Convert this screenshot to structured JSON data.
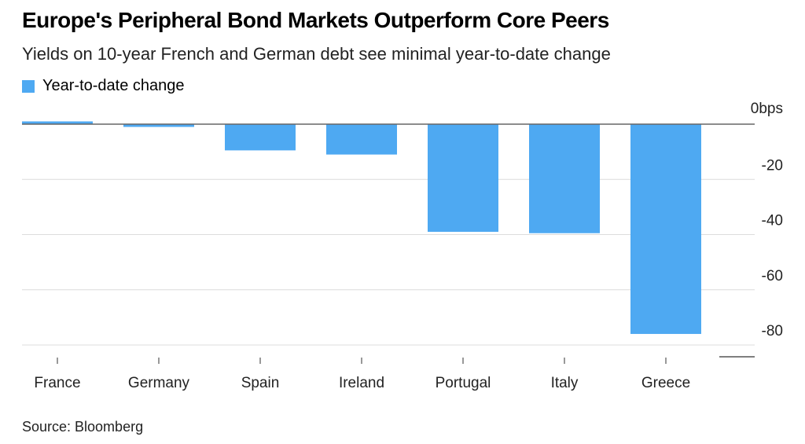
{
  "title": "Europe's Peripheral Bond Markets Outperform Core Peers",
  "subtitle": "Yields on 10-year French and German debt see minimal year-to-date change",
  "legend": {
    "label": "Year-to-date change",
    "color": "#4ea9f2"
  },
  "source": "Source: Bloomberg",
  "chart_data": {
    "type": "bar",
    "categories": [
      "France",
      "Germany",
      "Spain",
      "Ireland",
      "Portugal",
      "Italy",
      "Greece"
    ],
    "series": [
      {
        "name": "Year-to-date change",
        "values": [
          1,
          -1,
          -9.5,
          -11,
          -39,
          -39.5,
          -76
        ]
      }
    ],
    "yticks": [
      0,
      -20,
      -40,
      -60,
      -80
    ],
    "ytick_labels": [
      "0bps",
      "-20",
      "-40",
      "-60",
      "-80"
    ],
    "ylim": [
      -80,
      0
    ],
    "grid": true,
    "legend_position": "top-left",
    "bar_color": "#4ea9f2"
  }
}
